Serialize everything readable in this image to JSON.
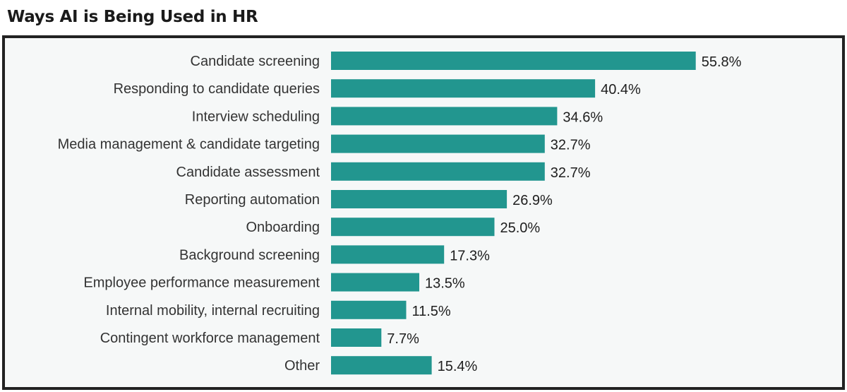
{
  "chart_data": {
    "type": "bar",
    "orientation": "horizontal",
    "title": "Ways AI is Being Used in HR",
    "categories": [
      "Candidate screening",
      "Responding to candidate queries",
      "Interview scheduling",
      "Media management & candidate targeting",
      "Candidate assessment",
      "Reporting automation",
      "Onboarding",
      "Background screening",
      "Employee performance measurement",
      "Internal mobility, internal recruiting",
      "Contingent workforce management",
      "Other"
    ],
    "values": [
      55.8,
      40.4,
      34.6,
      32.7,
      32.7,
      26.9,
      25.0,
      17.3,
      13.5,
      11.5,
      7.7,
      15.4
    ],
    "value_labels": [
      "55.8%",
      "40.4%",
      "34.6%",
      "32.7%",
      "32.7%",
      "26.9%",
      "25.0%",
      "17.3%",
      "13.5%",
      "11.5%",
      "7.7%",
      "15.4%"
    ],
    "xlabel": "",
    "ylabel": "",
    "grid": false,
    "legend": "none",
    "bar_color": "#22968f"
  }
}
